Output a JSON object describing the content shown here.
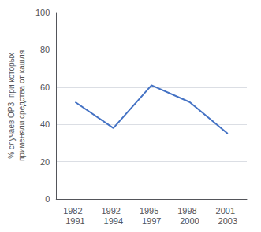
{
  "chart_data": {
    "type": "line",
    "categories": [
      "1982–\n1991",
      "1992–\n1994",
      "1995–\n1997",
      "1998–\n2000",
      "2001–\n2003"
    ],
    "values": [
      52,
      38,
      61,
      52,
      35
    ],
    "color": "#4472C4",
    "ylabel": "% случаев ОРЗ, при которых\nприменяли средства от кашля",
    "ylim": [
      0,
      100
    ],
    "yticks": [
      0,
      20,
      40,
      60,
      80,
      100
    ],
    "grid": true
  }
}
